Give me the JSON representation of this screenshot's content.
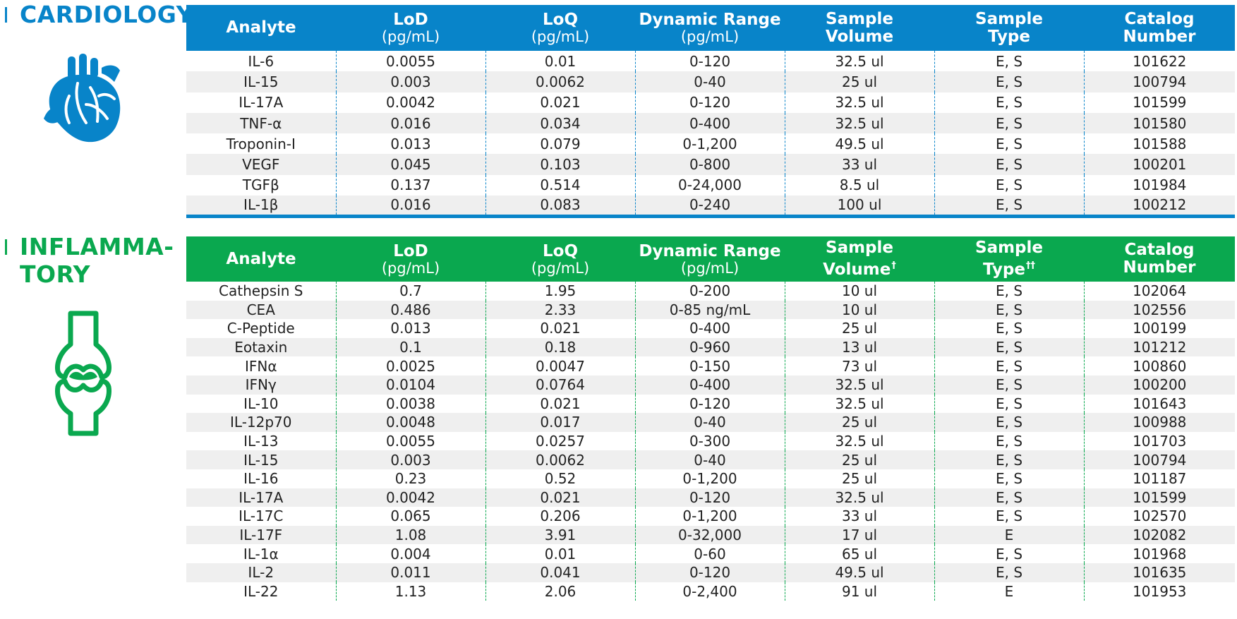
{
  "colors": {
    "cardiology": "#0884c9",
    "inflammatory": "#0aa84f",
    "row_stripe": "#efefef"
  },
  "cardiology": {
    "title": "CARDIOLOGY",
    "icon": "heart-icon",
    "headers": [
      {
        "title": "Analyte",
        "unit": ""
      },
      {
        "title": "LoD",
        "unit": "(pg/mL)"
      },
      {
        "title": "LoQ",
        "unit": "(pg/mL)"
      },
      {
        "title": "Dynamic Range",
        "unit": "(pg/mL)"
      },
      {
        "title": "Sample",
        "unit": "Volume",
        "unit_bold": true
      },
      {
        "title": "Sample",
        "unit": "Type",
        "unit_bold": true
      },
      {
        "title": "Catalog",
        "unit": "Number",
        "unit_bold": true
      }
    ],
    "rows": [
      [
        "IL-6",
        "0.0055",
        "0.01",
        "0-120",
        "32.5 ul",
        "E, S",
        "101622"
      ],
      [
        "IL-15",
        "0.003",
        "0.0062",
        "0-40",
        "25 ul",
        "E, S",
        "100794"
      ],
      [
        "IL-17A",
        "0.0042",
        "0.021",
        "0-120",
        "32.5 ul",
        "E, S",
        "101599"
      ],
      [
        "TNF-α",
        "0.016",
        "0.034",
        "0-400",
        "32.5 ul",
        "E, S",
        "101580"
      ],
      [
        "Troponin-I",
        "0.013",
        "0.079",
        "0-1,200",
        "49.5 ul",
        "E, S",
        "101588"
      ],
      [
        "VEGF",
        "0.045",
        "0.103",
        "0-800",
        "33 ul",
        "E, S",
        "100201"
      ],
      [
        "TGFβ",
        "0.137",
        "0.514",
        "0-24,000",
        "8.5 ul",
        "E, S",
        "101984"
      ],
      [
        "IL-1β",
        "0.016",
        "0.083",
        "0-240",
        "100 ul",
        "E, S",
        "100212"
      ]
    ]
  },
  "inflammatory": {
    "title": "INFLAMMA-\nTORY",
    "icon": "joint-icon",
    "headers": [
      {
        "title": "Analyte",
        "unit": ""
      },
      {
        "title": "LoD",
        "unit": "(pg/mL)"
      },
      {
        "title": "LoQ",
        "unit": "(pg/mL)"
      },
      {
        "title": "Dynamic Range",
        "unit": "(pg/mL)"
      },
      {
        "title": "Sample",
        "unit": "Volume",
        "unit_bold": true,
        "sup": "†"
      },
      {
        "title": "Sample",
        "unit": "Type",
        "unit_bold": true,
        "sup": "††"
      },
      {
        "title": "Catalog",
        "unit": "Number",
        "unit_bold": true
      }
    ],
    "rows": [
      [
        "Cathepsin S",
        "0.7",
        "1.95",
        "0-200",
        "10 ul",
        "E, S",
        "102064"
      ],
      [
        "CEA",
        "0.486",
        "2.33",
        "0-85 ng/mL",
        "10 ul",
        "E, S",
        "102556"
      ],
      [
        "C-Peptide",
        "0.013",
        "0.021",
        "0-400",
        "25 ul",
        "E, S",
        "100199"
      ],
      [
        "Eotaxin",
        "0.1",
        "0.18",
        "0-960",
        "13 ul",
        "E, S",
        "101212"
      ],
      [
        "IFNα",
        "0.0025",
        "0.0047",
        "0-150",
        "73 ul",
        "E, S",
        "100860"
      ],
      [
        "IFNγ",
        "0.0104",
        "0.0764",
        "0-400",
        "32.5 ul",
        "E, S",
        "100200"
      ],
      [
        "IL-10",
        "0.0038",
        "0.021",
        "0-120",
        "32.5 ul",
        "E, S",
        "101643"
      ],
      [
        "IL-12p70",
        "0.0048",
        "0.017",
        "0-40",
        "25 ul",
        "E, S",
        "100988"
      ],
      [
        "IL-13",
        "0.0055",
        "0.0257",
        "0-300",
        "32.5 ul",
        "E, S",
        "101703"
      ],
      [
        "IL-15",
        "0.003",
        "0.0062",
        "0-40",
        "25 ul",
        "E, S",
        "100794"
      ],
      [
        "IL-16",
        "0.23",
        "0.52",
        "0-1,200",
        "25 ul",
        "E, S",
        "101187"
      ],
      [
        "IL-17A",
        "0.0042",
        "0.021",
        "0-120",
        "32.5 ul",
        "E, S",
        "101599"
      ],
      [
        "IL-17C",
        "0.065",
        "0.206",
        "0-1,200",
        "33 ul",
        "E, S",
        "102570"
      ],
      [
        "IL-17F",
        "1.08",
        "3.91",
        "0-32,000",
        "17 ul",
        "E",
        "102082"
      ],
      [
        "IL-1α",
        "0.004",
        "0.01",
        "0-60",
        "65 ul",
        "E, S",
        "101968"
      ],
      [
        "IL-2",
        "0.011",
        "0.041",
        "0-120",
        "49.5 ul",
        "E, S",
        "101635"
      ],
      [
        "IL-22",
        "1.13",
        "2.06",
        "0-2,400",
        "91 ul",
        "E",
        "101953"
      ]
    ]
  }
}
